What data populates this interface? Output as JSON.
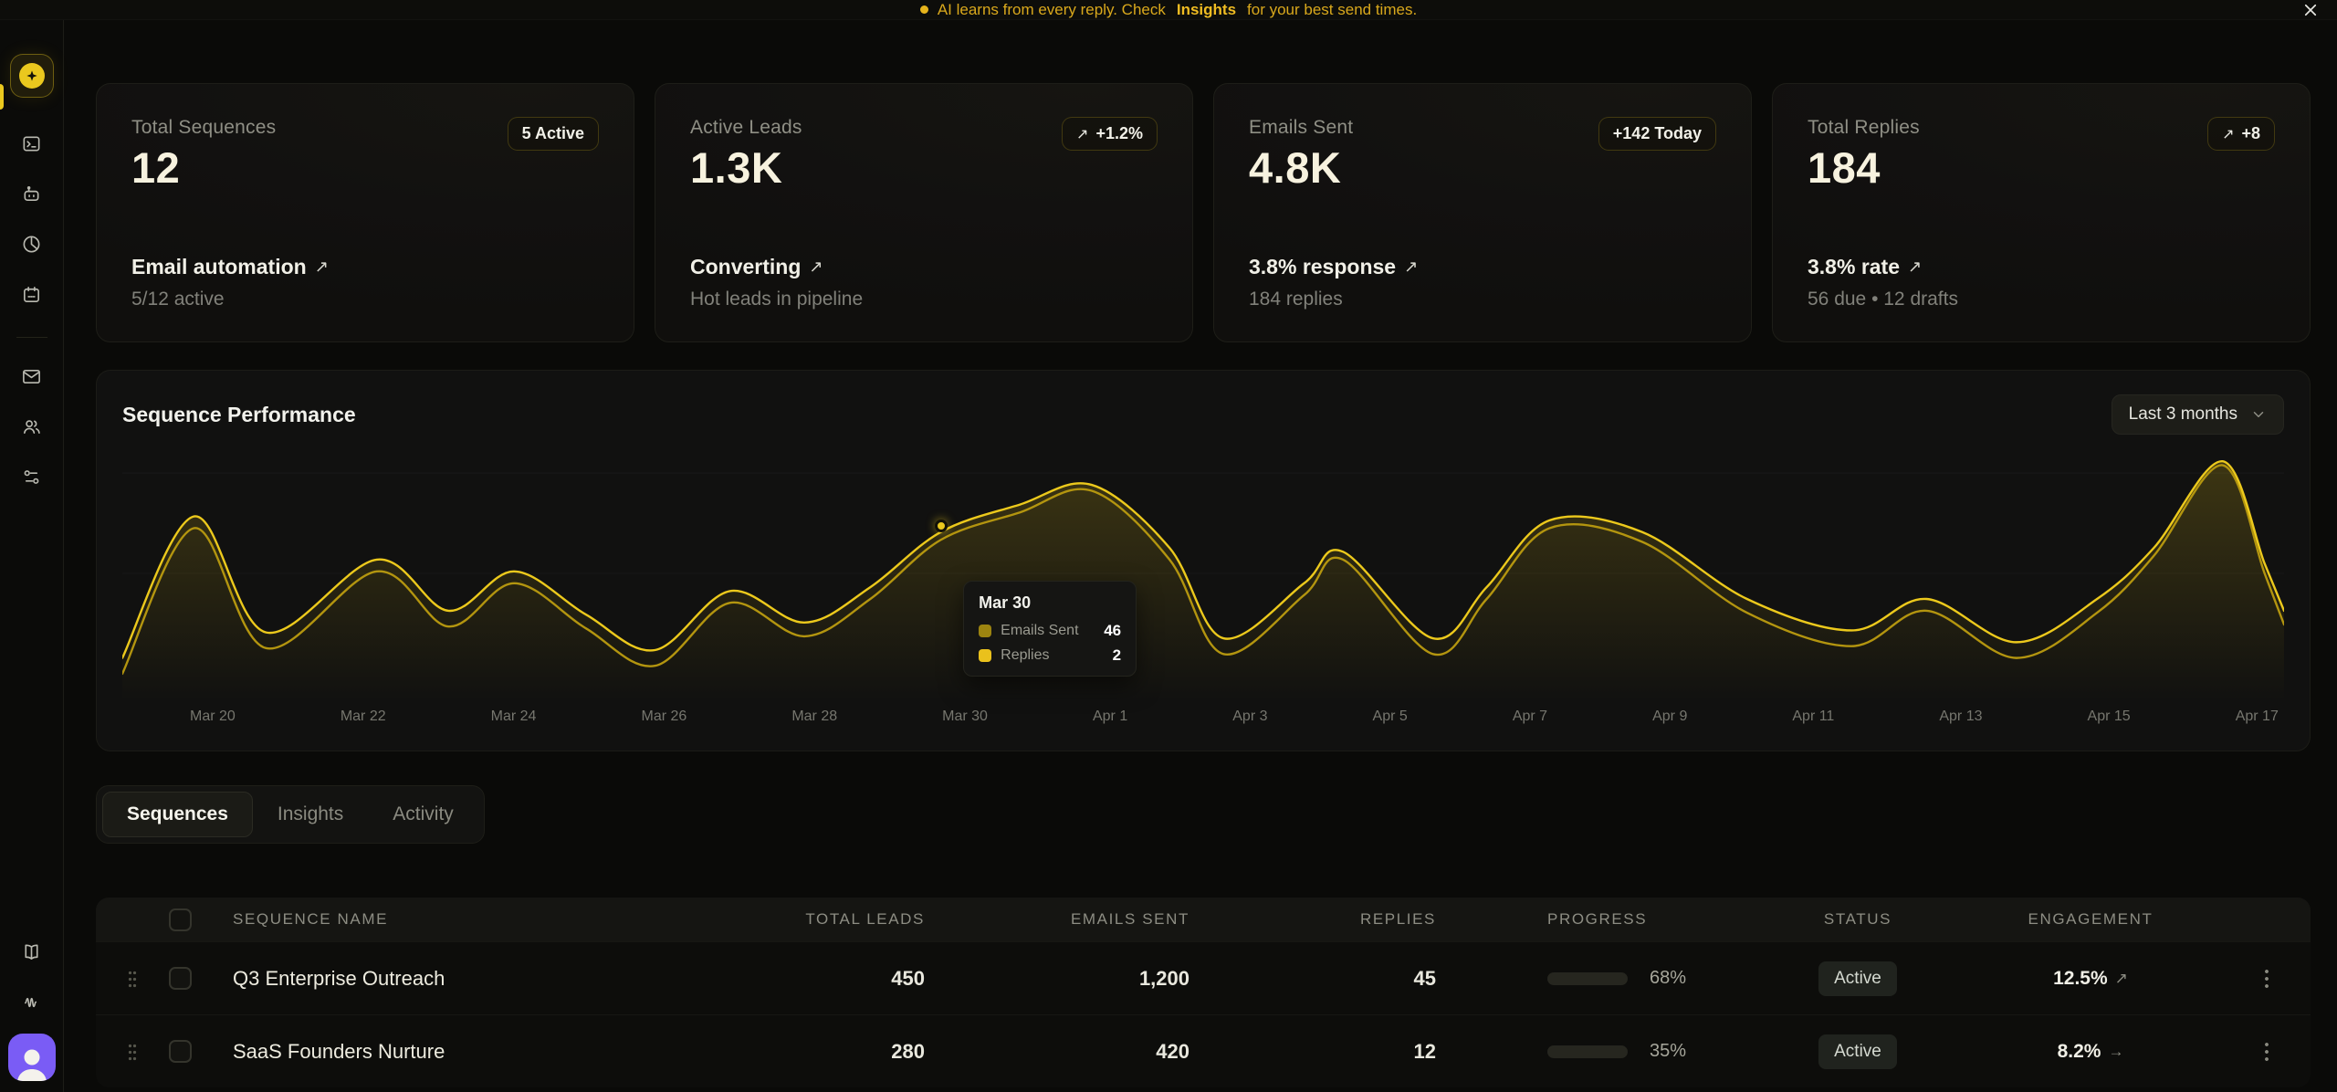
{
  "colors": {
    "accent": "#eac81e",
    "accent_dark": "#a88f10",
    "avatar_bg": "#7a5cf5"
  },
  "banner": {
    "text_prefix": "AI learns from every reply. Check",
    "link_text": "Insights",
    "text_suffix": "for your best send times."
  },
  "cards": [
    {
      "label": "Total Sequences",
      "badge_icon": "",
      "badge": "5 Active",
      "value": "12",
      "title": "Email automation",
      "title_trend": "↗",
      "subtitle": "5/12 active"
    },
    {
      "label": "Active Leads",
      "badge_icon": "↗",
      "badge": "+1.2%",
      "value": "1.3K",
      "title": "Converting",
      "title_trend": "↗",
      "subtitle": "Hot leads in pipeline"
    },
    {
      "label": "Emails Sent",
      "badge_icon": "",
      "badge": "+142 Today",
      "value": "4.8K",
      "title": "3.8% response",
      "title_trend": "↗",
      "subtitle": "184 replies"
    },
    {
      "label": "Total Replies",
      "badge_icon": "↗",
      "badge": "+8",
      "value": "184",
      "title": "3.8% rate",
      "title_trend": "↗",
      "subtitle": "56 due • 12 drafts"
    }
  ],
  "chart": {
    "title": "Sequence Performance",
    "range_label": "Last 3 months",
    "x_labels": [
      "Mar 20",
      "Mar 22",
      "Mar 24",
      "Mar 26",
      "Mar 28",
      "Mar 30",
      "Apr 1",
      "Apr 3",
      "Apr 5",
      "Apr 7",
      "Apr 9",
      "Apr 11",
      "Apr 13",
      "Apr 15",
      "Apr 17"
    ],
    "tooltip": {
      "title": "Mar 30",
      "rows": [
        {
          "label": "Emails Sent",
          "value": "46",
          "color": "#9c8410"
        },
        {
          "label": "Replies",
          "value": "2",
          "color": "#eac11c"
        }
      ]
    },
    "series": [
      {
        "name": "Emails Sent",
        "color": "#b3950f",
        "points": [
          [
            0,
            116
          ],
          [
            48,
            42
          ],
          [
            96,
            103
          ],
          [
            170,
            64
          ],
          [
            218,
            92
          ],
          [
            262,
            70
          ],
          [
            310,
            93
          ],
          [
            356,
            112
          ],
          [
            406,
            80
          ],
          [
            456,
            97
          ],
          [
            500,
            78
          ],
          [
            547,
            48
          ],
          [
            600,
            34
          ],
          [
            648,
            23
          ],
          [
            700,
            58
          ],
          [
            736,
            106
          ],
          [
            790,
            76
          ],
          [
            816,
            58
          ],
          [
            876,
            106
          ],
          [
            912,
            78
          ],
          [
            954,
            42
          ],
          [
            1016,
            49
          ],
          [
            1086,
            85
          ],
          [
            1156,
            102
          ],
          [
            1206,
            84
          ],
          [
            1266,
            108
          ],
          [
            1320,
            85
          ],
          [
            1358,
            56
          ],
          [
            1404,
            10
          ],
          [
            1432,
            65
          ],
          [
            1445,
            91
          ]
        ]
      },
      {
        "name": "Replies",
        "color": "#ecc91c",
        "points": [
          [
            0,
            108
          ],
          [
            48,
            36
          ],
          [
            96,
            95
          ],
          [
            170,
            58
          ],
          [
            218,
            84
          ],
          [
            262,
            64
          ],
          [
            310,
            86
          ],
          [
            356,
            104
          ],
          [
            406,
            74
          ],
          [
            456,
            90
          ],
          [
            500,
            72
          ],
          [
            547,
            44
          ],
          [
            600,
            30
          ],
          [
            648,
            20
          ],
          [
            700,
            52
          ],
          [
            736,
            98
          ],
          [
            790,
            70
          ],
          [
            816,
            54
          ],
          [
            876,
            98
          ],
          [
            912,
            72
          ],
          [
            954,
            38
          ],
          [
            1016,
            44
          ],
          [
            1086,
            78
          ],
          [
            1156,
            94
          ],
          [
            1206,
            78
          ],
          [
            1266,
            100
          ],
          [
            1320,
            78
          ],
          [
            1358,
            52
          ],
          [
            1404,
            8
          ],
          [
            1432,
            60
          ],
          [
            1445,
            84
          ]
        ]
      }
    ]
  },
  "tabs": [
    {
      "label": "Sequences"
    },
    {
      "label": "Insights"
    },
    {
      "label": "Activity"
    }
  ],
  "table": {
    "columns": [
      "Sequence Name",
      "Total Leads",
      "Emails Sent",
      "Replies",
      "Progress",
      "Status",
      "Engagement"
    ],
    "rows": [
      {
        "name": "Q3 Enterprise Outreach",
        "leads": "450",
        "emails": "1,200",
        "replies": "45",
        "progress": 68,
        "progress_label": "68%",
        "status": "Active",
        "engagement": "12.5%",
        "trend": "↗"
      },
      {
        "name": "SaaS Founders Nurture",
        "leads": "280",
        "emails": "420",
        "replies": "12",
        "progress": 35,
        "progress_label": "35%",
        "status": "Active",
        "engagement": "8.2%",
        "trend": "→"
      }
    ]
  }
}
